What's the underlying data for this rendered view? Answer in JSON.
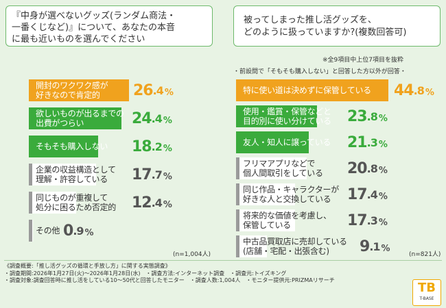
{
  "left": {
    "question_lines": [
      "『中身が選べないグッズ(ランダム商法・",
      "一番くじなど)』について、あなたの本音",
      "に最も近いものを選んでください"
    ],
    "n_label": "(n=1,004人)"
  },
  "right": {
    "question_lines": [
      "被ってしまった推し活グッズを、",
      "どのように扱っていますか?(複数回答可)"
    ],
    "note": "※全9項目中上位7項目を抜粋",
    "subnote": "・前設問で「そもそも購入しない」と回答した方以外が回答・",
    "n_label": "(n=821人)"
  },
  "footer": {
    "lines": [
      "《調査概要:「推し活グッズの循環と手放し方」に関する実態調査》",
      "・調査期間:2026年1月27日(火)〜2026年1月28日(水)　・調査方法:インターネット調査　・調査元:トイズキング",
      "・調査対象:調査回答時に推し活をしている10〜50代と回答したモニター　・調査人数:1,004人　・モニター提供元:PRIZMAリサーチ"
    ]
  },
  "logo": {
    "mark": "TB",
    "text": "T-BASE"
  },
  "colors": {
    "orange": "#f0a21e",
    "green": "#3aab3c",
    "gray": "#9a9a9a",
    "white": "#ffffff",
    "bg": "#e8f3e4"
  },
  "chart_data": [
    {
      "type": "bar",
      "orientation": "horizontal",
      "unit": "%",
      "categories": [
        [
          "開封のワクワク感が",
          "好きなので肯定的"
        ],
        [
          "欲しいものが出るまでの",
          "出費がつらい"
        ],
        [
          "そもそも購入しない"
        ],
        [
          "企業の収益構造として",
          "理解・許容している"
        ],
        [
          "同じものが重複して",
          "処分に困るため否定的"
        ],
        [
          "その他"
        ]
      ],
      "values": [
        26.4,
        24.4,
        18.2,
        17.7,
        12.4,
        0.9
      ],
      "value_labels": [
        [
          "26",
          ".4"
        ],
        [
          "24",
          ".4"
        ],
        [
          "18",
          ".2"
        ],
        [
          "17",
          ".7"
        ],
        [
          "12",
          ".4"
        ],
        [
          "0",
          ".9"
        ]
      ],
      "unit_label": "%",
      "bar_colors": [
        "orange",
        "green",
        "green",
        "gray",
        "gray",
        "gray"
      ]
    },
    {
      "type": "bar",
      "orientation": "horizontal",
      "unit": "%",
      "categories": [
        [
          "特に使い道は決めずに保管している"
        ],
        [
          "使用・鑑賞・保管などと",
          "目的別に使い分けている"
        ],
        [
          "友人・知人に譲っている"
        ],
        [
          "フリマアプリなどで",
          "個人間取引をしている"
        ],
        [
          "同じ作品・キャラクターが",
          "好きな人と交換している"
        ],
        [
          "将来的な価値を考慮し、",
          "保管している"
        ],
        [
          "中古品買取店に売却している",
          "(店舗・宅配・出張含む)"
        ]
      ],
      "values": [
        44.8,
        23.8,
        21.3,
        20.8,
        17.4,
        17.3,
        9.1
      ],
      "value_labels": [
        [
          "44",
          ".8"
        ],
        [
          "23",
          ".8"
        ],
        [
          "21",
          ".3"
        ],
        [
          "20",
          ".8"
        ],
        [
          "17",
          ".4"
        ],
        [
          "17",
          ".3"
        ],
        [
          "9",
          ".1"
        ]
      ],
      "unit_label": "%",
      "bar_colors": [
        "orange",
        "green",
        "green",
        "gray",
        "gray",
        "gray",
        "gray"
      ]
    }
  ]
}
